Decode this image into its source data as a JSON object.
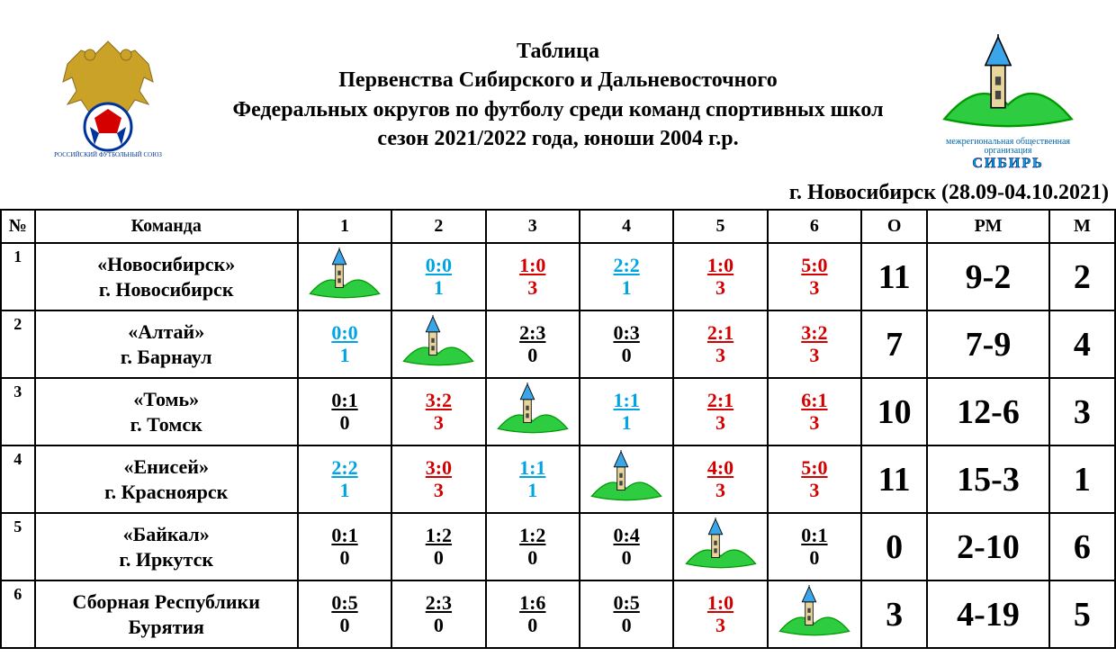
{
  "title": {
    "line1": "Таблица",
    "line2": "Первенства Сибирского и Дальневосточного",
    "line3": "Федеральных округов по футболу среди команд спортивных школ",
    "line4": "сезон 2021/2022 года, юноши 2004 г.р."
  },
  "location": "г. Новосибирск (28.09-04.10.2021)",
  "headers": {
    "num": "№",
    "team": "Команда",
    "g1": "1",
    "g2": "2",
    "g3": "3",
    "g4": "4",
    "g5": "5",
    "g6": "6",
    "o": "О",
    "pm": "РМ",
    "m": "М"
  },
  "colors": {
    "blue": "#00a4e4",
    "red": "#d40000",
    "black": "#000000"
  },
  "rows": [
    {
      "num": "1",
      "team1": "«Новосибирск»",
      "team2": "г. Новосибирск",
      "games": [
        {
          "self": true
        },
        {
          "top": "0:0",
          "bot": "1",
          "color": "blue"
        },
        {
          "top": "1:0",
          "bot": "3",
          "color": "red"
        },
        {
          "top": "2:2",
          "bot": "1",
          "color": "blue"
        },
        {
          "top": "1:0",
          "bot": "3",
          "color": "red"
        },
        {
          "top": "5:0",
          "bot": "3",
          "color": "red"
        }
      ],
      "o": "11",
      "pm": "9-2",
      "m": "2"
    },
    {
      "num": "2",
      "team1": "«Алтай»",
      "team2": "г. Барнаул",
      "games": [
        {
          "top": "0:0",
          "bot": "1",
          "color": "blue"
        },
        {
          "self": true
        },
        {
          "top": "2:3",
          "bot": "0",
          "color": "black"
        },
        {
          "top": "0:3",
          "bot": "0",
          "color": "black"
        },
        {
          "top": "2:1",
          "bot": "3",
          "color": "red"
        },
        {
          "top": "3:2",
          "bot": "3",
          "color": "red"
        }
      ],
      "o": "7",
      "pm": "7-9",
      "m": "4"
    },
    {
      "num": "3",
      "team1": "«Томь»",
      "team2": "г. Томск",
      "games": [
        {
          "top": "0:1",
          "bot": "0",
          "color": "black"
        },
        {
          "top": "3:2",
          "bot": "3",
          "color": "red"
        },
        {
          "self": true
        },
        {
          "top": "1:1",
          "bot": "1",
          "color": "blue"
        },
        {
          "top": "2:1",
          "bot": "3",
          "color": "red"
        },
        {
          "top": "6:1",
          "bot": "3",
          "color": "red"
        }
      ],
      "o": "10",
      "pm": "12-6",
      "m": "3"
    },
    {
      "num": "4",
      "team1": "«Енисей»",
      "team2": "г. Красноярск",
      "games": [
        {
          "top": "2:2",
          "bot": "1",
          "color": "blue"
        },
        {
          "top": "3:0",
          "bot": "3",
          "color": "red"
        },
        {
          "top": "1:1",
          "bot": "1",
          "color": "blue"
        },
        {
          "self": true
        },
        {
          "top": "4:0",
          "bot": "3",
          "color": "red"
        },
        {
          "top": "5:0",
          "bot": "3",
          "color": "red"
        }
      ],
      "o": "11",
      "pm": "15-3",
      "m": "1"
    },
    {
      "num": "5",
      "team1": "«Байкал»",
      "team2": "г. Иркутск",
      "games": [
        {
          "top": "0:1",
          "bot": "0",
          "color": "black"
        },
        {
          "top": "1:2",
          "bot": "0",
          "color": "black"
        },
        {
          "top": "1:2",
          "bot": "0",
          "color": "black"
        },
        {
          "top": "0:4",
          "bot": "0",
          "color": "black"
        },
        {
          "self": true
        },
        {
          "top": "0:1",
          "bot": "0",
          "color": "black"
        }
      ],
      "o": "0",
      "pm": "2-10",
      "m": "6"
    },
    {
      "num": "6",
      "team1": "Сборная Республики",
      "team2": "Бурятия",
      "games": [
        {
          "top": "0:5",
          "bot": "0",
          "color": "black"
        },
        {
          "top": "2:3",
          "bot": "0",
          "color": "black"
        },
        {
          "top": "1:6",
          "bot": "0",
          "color": "black"
        },
        {
          "top": "0:5",
          "bot": "0",
          "color": "black"
        },
        {
          "top": "1:0",
          "bot": "3",
          "color": "red"
        },
        {
          "self": true
        }
      ],
      "o": "3",
      "pm": "4-19",
      "m": "5"
    }
  ],
  "logo_right": {
    "small": "межрегиональная общественная организация",
    "big": "СИБИРЬ"
  }
}
